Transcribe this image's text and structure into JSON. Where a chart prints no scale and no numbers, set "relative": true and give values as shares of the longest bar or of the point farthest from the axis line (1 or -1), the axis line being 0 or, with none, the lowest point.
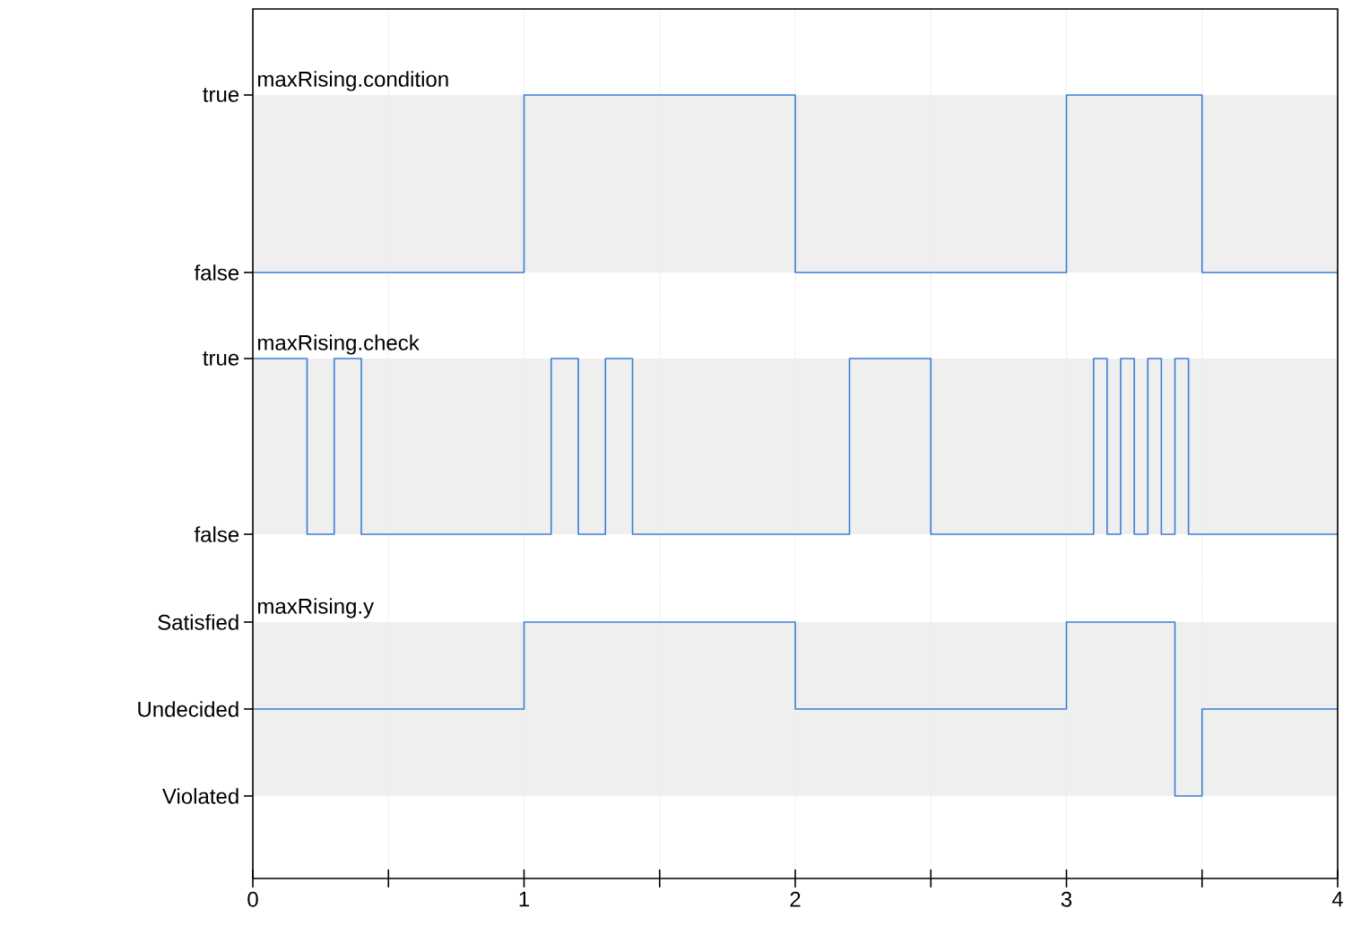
{
  "chart_data": [
    {
      "type": "step",
      "relative": true,
      "xlim": [
        0,
        4
      ],
      "xticks": [
        0,
        {
          "value": 0.5,
          "label": null
        },
        1,
        {
          "value": 1.5,
          "label": null
        },
        2,
        {
          "value": 2.5,
          "label": null
        },
        3,
        {
          "value": 3.5,
          "label": null
        },
        4
      ],
      "tick_labels": false,
      "grid": "x",
      "annotations": [
        "true",
        "false"
      ],
      "series": [
        {
          "name": "maxRising.condition",
          "color": "#3a7fd5",
          "x": [
            0,
            1,
            2,
            3,
            3.5,
            4
          ],
          "values": [
            0,
            1,
            0,
            1,
            0,
            0
          ]
        }
      ]
    },
    {
      "type": "step",
      "relative": true,
      "xlim": [
        0,
        4
      ],
      "xticks": [
        0,
        {
          "value": 0.5,
          "label": null
        },
        1,
        {
          "value": 1.5,
          "label": null
        },
        2,
        {
          "value": 2.5,
          "label": null
        },
        3,
        {
          "value": 3.5,
          "label": null
        },
        4
      ],
      "tick_labels": false,
      "grid": "x",
      "annotations": [
        "true",
        "false"
      ],
      "series": [
        {
          "name": "maxRising.check",
          "color": "#3a7fd5",
          "x": [
            0,
            0.2,
            0.3,
            0.4,
            1.1,
            1.2,
            1.3,
            1.4,
            2.2,
            2.5,
            3.1,
            3.15,
            3.2,
            3.25,
            3.3,
            3.35,
            3.4,
            3.45,
            4
          ],
          "values": [
            1,
            0,
            1,
            0,
            1,
            0,
            1,
            0,
            1,
            0,
            1,
            0,
            1,
            0,
            1,
            0,
            1,
            0,
            0
          ]
        }
      ]
    },
    {
      "type": "step",
      "relative": true,
      "xlim": [
        0,
        4
      ],
      "xticks": [
        0,
        {
          "value": 0.5,
          "label": null
        },
        1,
        {
          "value": 1.5,
          "label": null
        },
        2,
        {
          "value": 2.5,
          "label": null
        },
        3,
        {
          "value": 3.5,
          "label": null
        },
        4
      ],
      "tick_labels": "x",
      "grid": "x",
      "annotations": [
        "Satisfied",
        "Undecided",
        "Violated"
      ],
      "series": [
        {
          "name": "maxRising.y",
          "color": "#3a7fd5",
          "x": [
            0,
            1,
            2,
            3,
            3.4,
            3.5,
            4
          ],
          "values": [
            0.5,
            1,
            0.5,
            1,
            0,
            0.5,
            0.5
          ]
        }
      ]
    }
  ]
}
